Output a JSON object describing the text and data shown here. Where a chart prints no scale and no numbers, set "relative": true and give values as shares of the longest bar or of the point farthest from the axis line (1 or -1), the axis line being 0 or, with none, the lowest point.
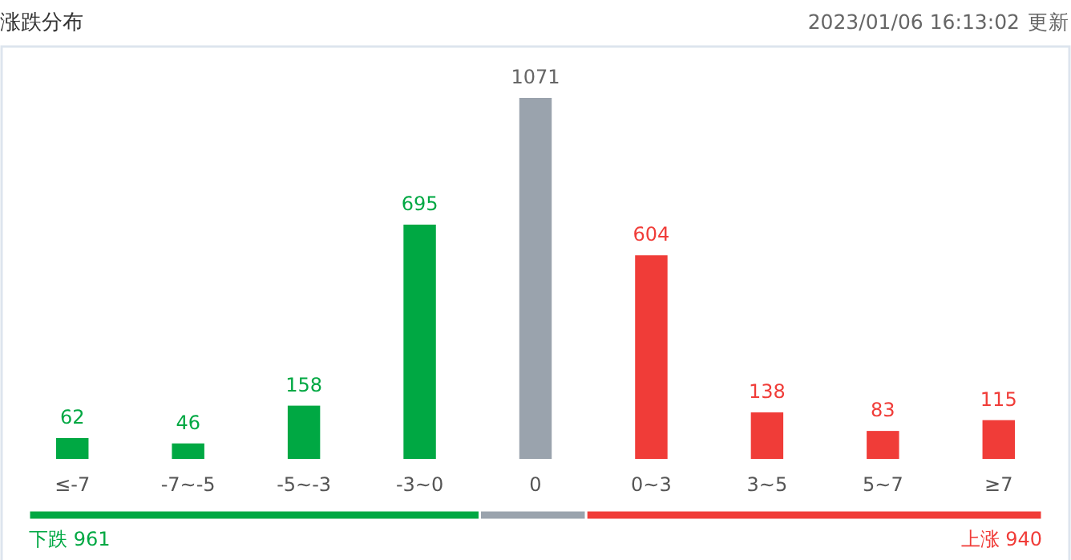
{
  "chart_data": [
    {
      "type": "bar",
      "title": "涨跌分布",
      "subtitle": "2023/01/06 16:13:02",
      "annotations": [
        "更新"
      ],
      "categories": [
        "≤-7",
        "-7~-5",
        "-5~-3",
        "-3~0",
        "0",
        "0~3",
        "3~5",
        "5~7",
        "≥7"
      ],
      "values": [
        62,
        46,
        158,
        695,
        1071,
        604,
        138,
        83,
        115
      ],
      "colors": [
        "#00a843",
        "#00a843",
        "#00a843",
        "#00a843",
        "#9aa3ad",
        "#f03c38",
        "#f03c38",
        "#f03c38",
        "#f03c38"
      ],
      "data_labels": true
    },
    {
      "type": "bar",
      "orientation": "horizontal",
      "stacked": true,
      "relative": true,
      "categories": [
        null
      ],
      "series": [
        {
          "color": "#00a843",
          "values": [
            0.445
          ]
        },
        {
          "color": "#9aa3ad",
          "values": [
            0.105
          ]
        },
        {
          "color": "#f03c38",
          "values": [
            0.45
          ]
        }
      ],
      "annotations": [
        "下跌 961",
        "上涨 940"
      ]
    }
  ]
}
